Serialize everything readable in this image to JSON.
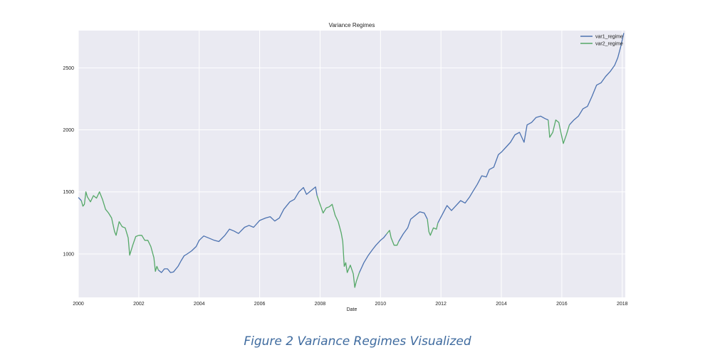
{
  "chart_data": {
    "type": "line",
    "title": "Variance Regimes",
    "xlabel": "Date",
    "ylabel": "",
    "xlim": [
      2000.0,
      2018.1
    ],
    "ylim": [
      650,
      2800
    ],
    "grid": true,
    "legend_position": "top-right",
    "x_ticks": [
      "2000",
      "2002",
      "2004",
      "2006",
      "2008",
      "2010",
      "2012",
      "2014",
      "2016",
      "2018"
    ],
    "y_ticks": [
      "1000",
      "1500",
      "2000",
      "2500"
    ],
    "series": [
      {
        "name": "var1_regime",
        "color": "#4c72b0",
        "segments": [
          [
            [
              2000.0,
              1455
            ],
            [
              2000.1,
              1430
            ]
          ],
          [
            [
              2002.65,
              870
            ],
            [
              2002.75,
              850
            ],
            [
              2002.85,
              880
            ],
            [
              2002.95,
              880
            ],
            [
              2003.05,
              850
            ],
            [
              2003.15,
              855
            ],
            [
              2003.3,
              900
            ],
            [
              2003.4,
              945
            ],
            [
              2003.5,
              985
            ],
            [
              2003.6,
              1000
            ],
            [
              2003.75,
              1025
            ],
            [
              2003.9,
              1060
            ],
            [
              2004.0,
              1110
            ],
            [
              2004.15,
              1145
            ],
            [
              2004.3,
              1130
            ],
            [
              2004.5,
              1110
            ],
            [
              2004.65,
              1100
            ],
            [
              2004.85,
              1150
            ],
            [
              2005.0,
              1200
            ],
            [
              2005.15,
              1185
            ],
            [
              2005.3,
              1165
            ],
            [
              2005.5,
              1215
            ],
            [
              2005.65,
              1230
            ],
            [
              2005.8,
              1215
            ],
            [
              2006.0,
              1270
            ],
            [
              2006.2,
              1290
            ],
            [
              2006.35,
              1300
            ],
            [
              2006.5,
              1265
            ],
            [
              2006.65,
              1290
            ],
            [
              2006.8,
              1360
            ],
            [
              2007.0,
              1420
            ],
            [
              2007.15,
              1440
            ],
            [
              2007.3,
              1500
            ],
            [
              2007.45,
              1535
            ],
            [
              2007.55,
              1480
            ],
            [
              2007.7,
              1510
            ],
            [
              2007.85,
              1540
            ],
            [
              2007.9,
              1470
            ]
          ],
          [
            [
              2009.3,
              850
            ],
            [
              2009.45,
              930
            ],
            [
              2009.6,
              990
            ],
            [
              2009.75,
              1040
            ],
            [
              2009.85,
              1070
            ],
            [
              2010.0,
              1110
            ],
            [
              2010.1,
              1130
            ],
            [
              2010.2,
              1160
            ]
          ],
          [
            [
              2010.6,
              1100
            ],
            [
              2010.75,
              1160
            ],
            [
              2010.9,
              1210
            ],
            [
              2011.0,
              1280
            ],
            [
              2011.15,
              1310
            ],
            [
              2011.3,
              1340
            ],
            [
              2011.45,
              1330
            ],
            [
              2011.55,
              1280
            ]
          ],
          [
            [
              2011.9,
              1250
            ],
            [
              2012.05,
              1320
            ],
            [
              2012.2,
              1390
            ],
            [
              2012.35,
              1350
            ],
            [
              2012.5,
              1390
            ],
            [
              2012.65,
              1430
            ],
            [
              2012.8,
              1410
            ],
            [
              2012.95,
              1460
            ],
            [
              2013.05,
              1500
            ],
            [
              2013.2,
              1560
            ],
            [
              2013.35,
              1630
            ],
            [
              2013.5,
              1620
            ],
            [
              2013.6,
              1680
            ],
            [
              2013.75,
              1700
            ],
            [
              2013.9,
              1800
            ],
            [
              2014.0,
              1820
            ],
            [
              2014.15,
              1860
            ],
            [
              2014.3,
              1900
            ],
            [
              2014.45,
              1960
            ],
            [
              2014.6,
              1980
            ],
            [
              2014.75,
              1900
            ],
            [
              2014.85,
              2040
            ],
            [
              2015.0,
              2060
            ],
            [
              2015.15,
              2100
            ],
            [
              2015.3,
              2110
            ],
            [
              2015.45,
              2090
            ],
            [
              2015.55,
              2080
            ]
          ],
          [
            [
              2016.25,
              2040
            ],
            [
              2016.4,
              2080
            ],
            [
              2016.55,
              2110
            ],
            [
              2016.7,
              2170
            ],
            [
              2016.85,
              2190
            ],
            [
              2017.0,
              2270
            ],
            [
              2017.15,
              2360
            ],
            [
              2017.3,
              2380
            ],
            [
              2017.45,
              2430
            ],
            [
              2017.6,
              2470
            ],
            [
              2017.75,
              2520
            ],
            [
              2017.85,
              2580
            ],
            [
              2017.95,
              2670
            ],
            [
              2018.05,
              2780
            ]
          ]
        ]
      },
      {
        "name": "var2_regime",
        "color": "#55a868",
        "segments": [
          [
            [
              2000.1,
              1430
            ],
            [
              2000.15,
              1385
            ],
            [
              2000.2,
              1400
            ],
            [
              2000.25,
              1500
            ],
            [
              2000.3,
              1460
            ],
            [
              2000.4,
              1420
            ],
            [
              2000.5,
              1470
            ],
            [
              2000.6,
              1450
            ],
            [
              2000.7,
              1500
            ],
            [
              2000.8,
              1440
            ],
            [
              2000.9,
              1360
            ],
            [
              2001.0,
              1330
            ],
            [
              2001.1,
              1290
            ],
            [
              2001.2,
              1180
            ],
            [
              2001.25,
              1150
            ],
            [
              2001.35,
              1260
            ],
            [
              2001.45,
              1220
            ],
            [
              2001.55,
              1210
            ],
            [
              2001.65,
              1130
            ],
            [
              2001.7,
              990
            ],
            [
              2001.8,
              1070
            ],
            [
              2001.9,
              1140
            ],
            [
              2002.0,
              1150
            ],
            [
              2002.1,
              1150
            ],
            [
              2002.2,
              1110
            ],
            [
              2002.3,
              1110
            ],
            [
              2002.4,
              1060
            ],
            [
              2002.5,
              970
            ],
            [
              2002.55,
              860
            ],
            [
              2002.6,
              900
            ],
            [
              2002.65,
              870
            ]
          ],
          [
            [
              2007.9,
              1470
            ],
            [
              2008.0,
              1400
            ],
            [
              2008.1,
              1330
            ],
            [
              2008.2,
              1370
            ],
            [
              2008.3,
              1380
            ],
            [
              2008.4,
              1400
            ],
            [
              2008.5,
              1310
            ],
            [
              2008.6,
              1260
            ],
            [
              2008.7,
              1170
            ],
            [
              2008.75,
              1100
            ],
            [
              2008.8,
              900
            ],
            [
              2008.85,
              930
            ],
            [
              2008.9,
              850
            ],
            [
              2009.0,
              910
            ],
            [
              2009.1,
              840
            ],
            [
              2009.15,
              730
            ],
            [
              2009.2,
              780
            ],
            [
              2009.3,
              850
            ]
          ],
          [
            [
              2010.2,
              1160
            ],
            [
              2010.3,
              1190
            ],
            [
              2010.35,
              1130
            ],
            [
              2010.45,
              1070
            ],
            [
              2010.55,
              1070
            ],
            [
              2010.6,
              1100
            ]
          ],
          [
            [
              2011.55,
              1280
            ],
            [
              2011.6,
              1180
            ],
            [
              2011.65,
              1150
            ],
            [
              2011.75,
              1210
            ],
            [
              2011.85,
              1200
            ],
            [
              2011.9,
              1250
            ]
          ],
          [
            [
              2015.55,
              2080
            ],
            [
              2015.6,
              1940
            ],
            [
              2015.7,
              1980
            ],
            [
              2015.8,
              2080
            ],
            [
              2015.9,
              2060
            ],
            [
              2015.95,
              2000
            ],
            [
              2016.05,
              1890
            ],
            [
              2016.15,
              1960
            ],
            [
              2016.25,
              2040
            ]
          ]
        ]
      }
    ]
  },
  "caption": "Figure 2 Variance Regimes Visualized"
}
